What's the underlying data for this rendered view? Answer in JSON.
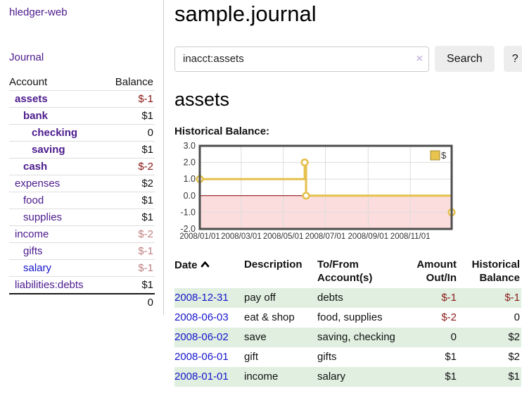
{
  "app": {
    "title": "hledger-web"
  },
  "sidebar": {
    "journal_label": "Journal",
    "table": {
      "account_header": "Account",
      "balance_header": "Balance",
      "accounts": [
        {
          "name": "assets",
          "balance": "$-1"
        },
        {
          "name": "bank",
          "balance": "$1"
        },
        {
          "name": "checking",
          "balance": "0"
        },
        {
          "name": "saving",
          "balance": "$1"
        },
        {
          "name": "cash",
          "balance": "$-2"
        },
        {
          "name": "expenses",
          "balance": "$2"
        },
        {
          "name": "food",
          "balance": "$1"
        },
        {
          "name": "supplies",
          "balance": "$1"
        },
        {
          "name": "income",
          "balance": "$-2"
        },
        {
          "name": "gifts",
          "balance": "$-1"
        },
        {
          "name": "salary",
          "balance": "$-1"
        },
        {
          "name": "liabilities:debts",
          "balance": "$1"
        }
      ],
      "total": "0"
    }
  },
  "main": {
    "page_title": "sample.journal",
    "search": {
      "value": "inacct:assets",
      "clear_icon": "×",
      "search_button": "Search",
      "help_button": "?"
    },
    "account_heading": "assets",
    "chart_label": "Historical Balance:"
  },
  "chart_data": {
    "type": "line",
    "title": "Historical Balance",
    "step": "after",
    "xlim": [
      0,
      365
    ],
    "ylim": [
      -2,
      3
    ],
    "yticks": [
      3.0,
      2.0,
      1.0,
      0.0,
      -1.0,
      -2.0
    ],
    "xticks": [
      {
        "day": 0,
        "label": "2008/01/01"
      },
      {
        "day": 60,
        "label": "2008/03/01"
      },
      {
        "day": 121,
        "label": "2008/05/01"
      },
      {
        "day": 182,
        "label": "2008/07/01"
      },
      {
        "day": 244,
        "label": "2008/09/01"
      },
      {
        "day": 305,
        "label": "2008/11/01"
      }
    ],
    "series": [
      {
        "name": "$",
        "points": [
          {
            "date": "2008-01-01",
            "day": 0,
            "value": 1
          },
          {
            "date": "2008-06-01",
            "day": 152,
            "value": 2
          },
          {
            "date": "2008-06-03",
            "day": 154,
            "value": 0
          },
          {
            "date": "2008-12-31",
            "day": 365,
            "value": -1
          }
        ]
      }
    ],
    "legend": {
      "position": "top-right",
      "label": "$"
    },
    "colors": {
      "line": "#e5c04c",
      "marker_fill": "#ffffff",
      "zero_line": "#8b0000",
      "negative_fill": "#fbdddd",
      "grid": "#dddddd",
      "border": "#4d4d4d",
      "legend_fill": "#e8c44f",
      "legend_border": "#a08a35",
      "tick_text": "#333333"
    }
  },
  "register": {
    "headers": {
      "date": "Date",
      "description": "Description",
      "accounts": "To/From Account(s)",
      "amount": "Amount Out/In",
      "balance": "Historical Balance"
    },
    "rows": [
      {
        "date": "2008-12-31",
        "description": "pay off",
        "accounts": "debts",
        "amount": "$-1",
        "balance": "$-1"
      },
      {
        "date": "2008-06-03",
        "description": "eat & shop",
        "accounts": "food, supplies",
        "amount": "$-2",
        "balance": "0"
      },
      {
        "date": "2008-06-02",
        "description": "save",
        "accounts": "saving, checking",
        "amount": "0",
        "balance": "$2"
      },
      {
        "date": "2008-06-01",
        "description": "gift",
        "accounts": "gifts",
        "amount": "$1",
        "balance": "$2"
      },
      {
        "date": "2008-01-01",
        "description": "income",
        "accounts": "salary",
        "amount": "$1",
        "balance": "$1"
      }
    ]
  }
}
